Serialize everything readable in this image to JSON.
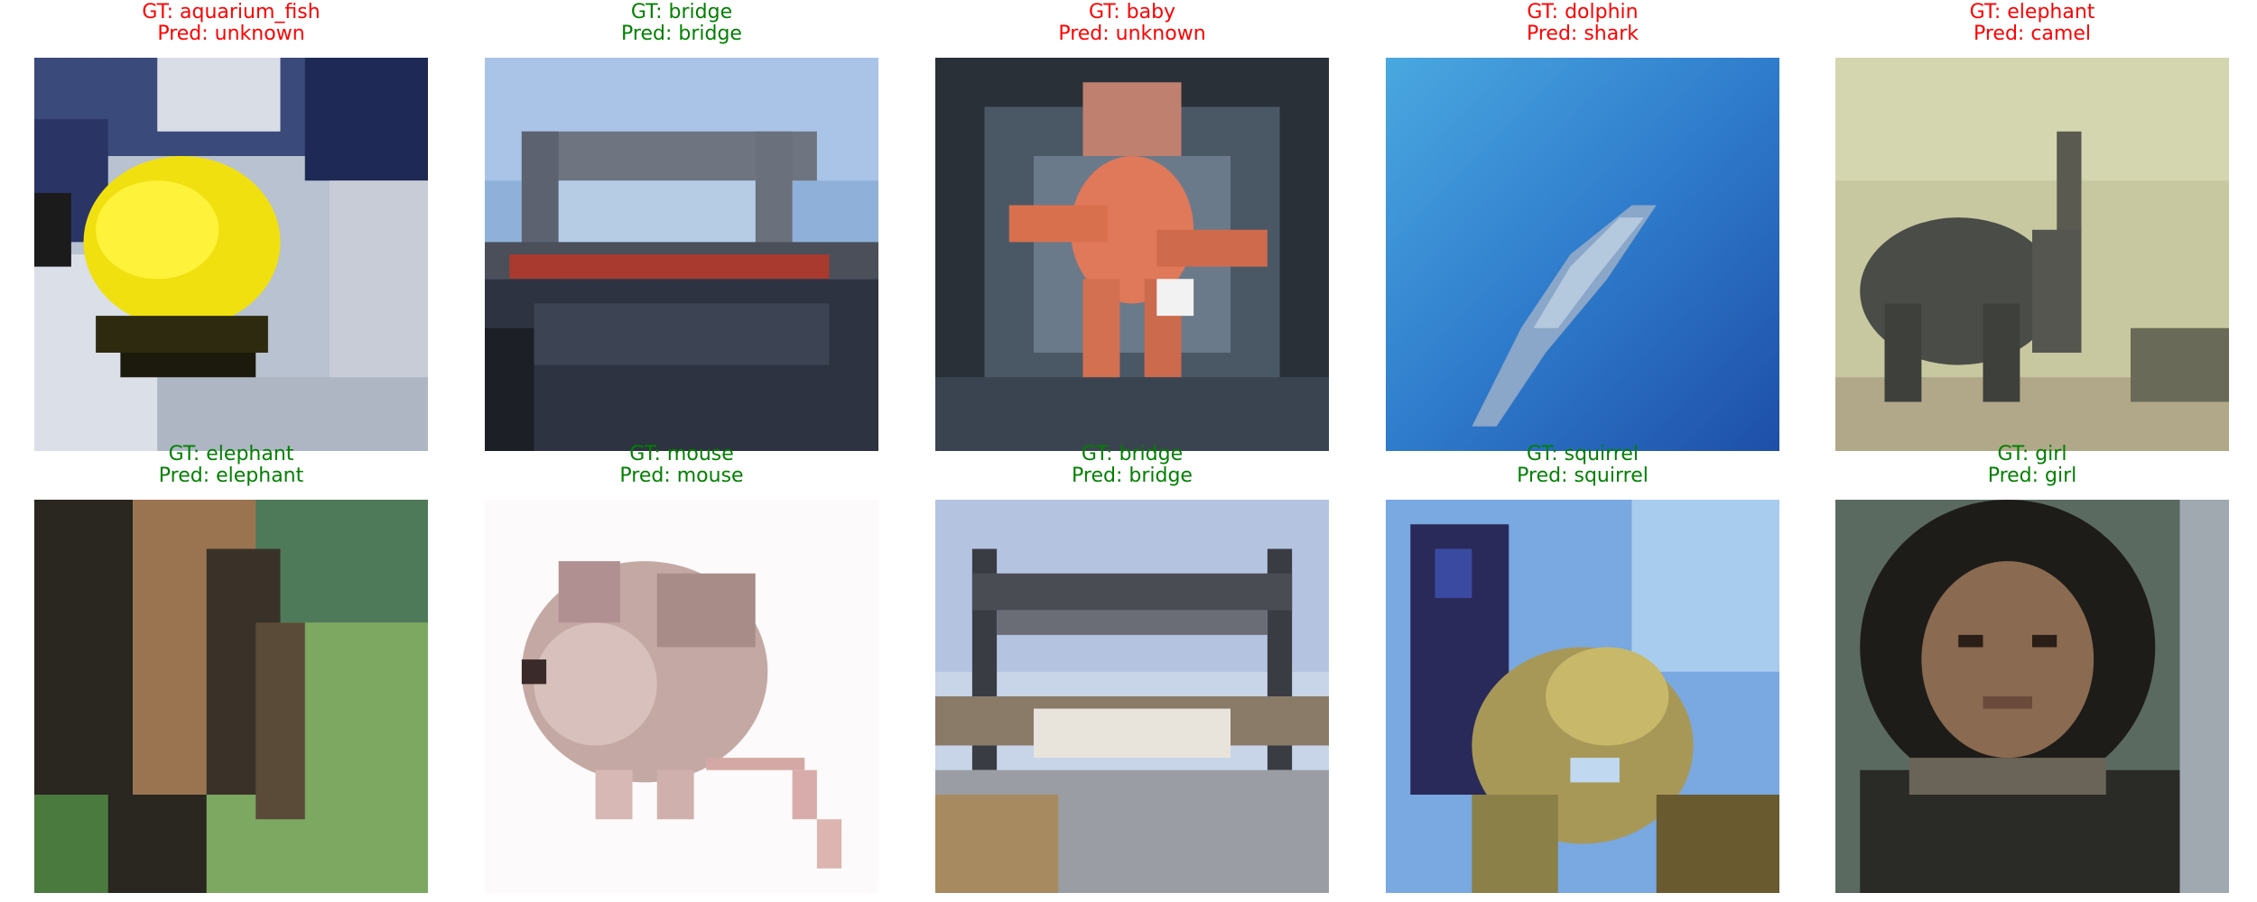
{
  "grid": [
    {
      "gt": "GT: aquarium_fish",
      "pred": "Pred: unknown",
      "correct": false,
      "image": "yellow-fish-photo"
    },
    {
      "gt": "GT: bridge",
      "pred": "Pred: bridge",
      "correct": true,
      "image": "bridge-photo"
    },
    {
      "gt": "GT: baby",
      "pred": "Pred: unknown",
      "correct": false,
      "image": "octopus-like-photo"
    },
    {
      "gt": "GT: dolphin",
      "pred": "Pred: shark",
      "correct": false,
      "image": "dolphin-underwater-photo"
    },
    {
      "gt": "GT: elephant",
      "pred": "Pred: camel",
      "correct": false,
      "image": "elephant-field-photo"
    },
    {
      "gt": "GT: elephant",
      "pred": "Pred: elephant",
      "correct": true,
      "image": "elephant-closeup-photo"
    },
    {
      "gt": "GT: mouse",
      "pred": "Pred: mouse",
      "correct": true,
      "image": "mouse-white-bg-photo"
    },
    {
      "gt": "GT: bridge",
      "pred": "Pred: bridge",
      "correct": true,
      "image": "lift-bridge-photo"
    },
    {
      "gt": "GT: squirrel",
      "pred": "Pred: squirrel",
      "correct": true,
      "image": "squirrel-photo"
    },
    {
      "gt": "GT: girl",
      "pred": "Pred: girl",
      "correct": true,
      "image": "girl-portrait-photo"
    }
  ],
  "colors": {
    "correct": "#008000",
    "wrong": "#ff0000"
  }
}
